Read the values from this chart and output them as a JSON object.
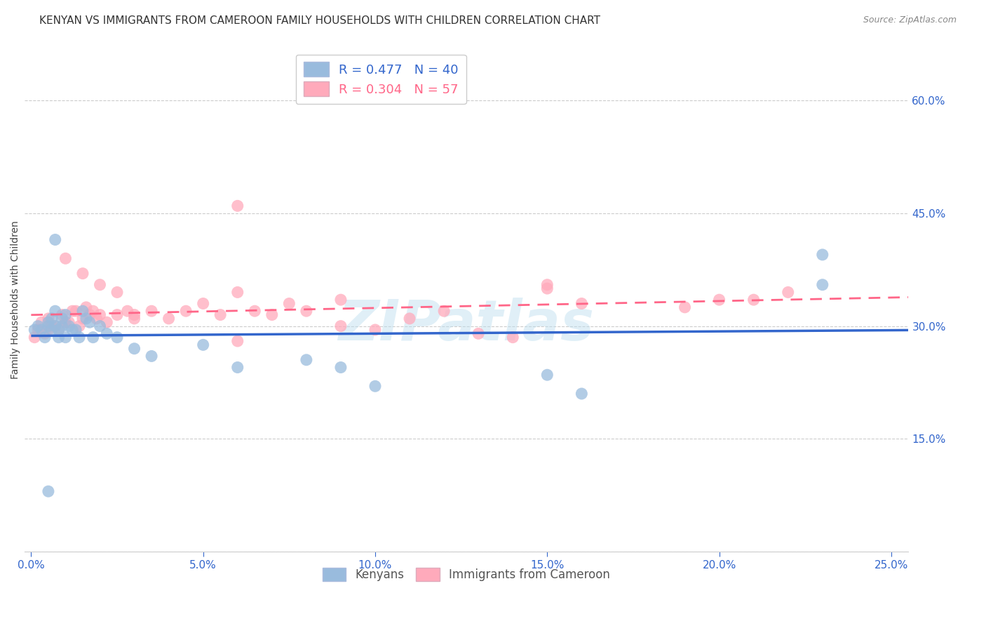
{
  "title": "KENYAN VS IMMIGRANTS FROM CAMEROON FAMILY HOUSEHOLDS WITH CHILDREN CORRELATION CHART",
  "source": "Source: ZipAtlas.com",
  "ylabel": "Family Households with Children",
  "ytick_labels": [
    "",
    "15.0%",
    "30.0%",
    "45.0%",
    "60.0%"
  ],
  "yticks": [
    0.0,
    0.15,
    0.3,
    0.45,
    0.6
  ],
  "xticks": [
    0.0,
    0.05,
    0.1,
    0.15,
    0.2,
    0.25
  ],
  "xlim": [
    -0.002,
    0.255
  ],
  "ylim": [
    0.0,
    0.67
  ],
  "blue_color": "#99BBDD",
  "pink_color": "#FFAABB",
  "line_blue": "#3366CC",
  "line_pink": "#FF6688",
  "watermark_zip": "ZIP",
  "watermark_atlas": "atlas",
  "legend_r_blue": "R = 0.477",
  "legend_n_blue": "N = 40",
  "legend_r_pink": "R = 0.304",
  "legend_n_pink": "N = 57",
  "legend_label_blue": "Kenyans",
  "legend_label_pink": "Immigrants from Cameroon",
  "blue_x": [
    0.001,
    0.002,
    0.003,
    0.004,
    0.005,
    0.005,
    0.006,
    0.006,
    0.007,
    0.007,
    0.008,
    0.008,
    0.009,
    0.009,
    0.01,
    0.01,
    0.011,
    0.012,
    0.013,
    0.014,
    0.015,
    0.016,
    0.017,
    0.018,
    0.02,
    0.022,
    0.025,
    0.03,
    0.035,
    0.05,
    0.06,
    0.08,
    0.09,
    0.1,
    0.15,
    0.16,
    0.23,
    0.23,
    0.007,
    0.005
  ],
  "blue_y": [
    0.295,
    0.3,
    0.295,
    0.285,
    0.305,
    0.3,
    0.31,
    0.295,
    0.3,
    0.32,
    0.295,
    0.285,
    0.3,
    0.31,
    0.285,
    0.315,
    0.3,
    0.295,
    0.295,
    0.285,
    0.32,
    0.31,
    0.305,
    0.285,
    0.3,
    0.29,
    0.285,
    0.27,
    0.26,
    0.275,
    0.245,
    0.255,
    0.245,
    0.22,
    0.235,
    0.21,
    0.395,
    0.355,
    0.415,
    0.08
  ],
  "pink_x": [
    0.001,
    0.002,
    0.003,
    0.004,
    0.005,
    0.005,
    0.006,
    0.007,
    0.008,
    0.009,
    0.01,
    0.01,
    0.011,
    0.012,
    0.013,
    0.014,
    0.015,
    0.016,
    0.017,
    0.018,
    0.019,
    0.02,
    0.022,
    0.025,
    0.028,
    0.03,
    0.035,
    0.04,
    0.045,
    0.05,
    0.055,
    0.06,
    0.065,
    0.07,
    0.075,
    0.08,
    0.09,
    0.1,
    0.11,
    0.12,
    0.13,
    0.14,
    0.15,
    0.16,
    0.19,
    0.2,
    0.21,
    0.22,
    0.01,
    0.015,
    0.02,
    0.025,
    0.03,
    0.06,
    0.09,
    0.15,
    0.06
  ],
  "pink_y": [
    0.285,
    0.295,
    0.305,
    0.29,
    0.295,
    0.31,
    0.3,
    0.3,
    0.295,
    0.315,
    0.305,
    0.305,
    0.305,
    0.32,
    0.32,
    0.3,
    0.31,
    0.325,
    0.315,
    0.32,
    0.31,
    0.315,
    0.305,
    0.315,
    0.32,
    0.315,
    0.32,
    0.31,
    0.32,
    0.33,
    0.315,
    0.345,
    0.32,
    0.315,
    0.33,
    0.32,
    0.3,
    0.295,
    0.31,
    0.32,
    0.29,
    0.285,
    0.355,
    0.33,
    0.325,
    0.335,
    0.335,
    0.345,
    0.39,
    0.37,
    0.355,
    0.345,
    0.31,
    0.28,
    0.335,
    0.35,
    0.46
  ],
  "title_fontsize": 11,
  "axis_label_fontsize": 10,
  "tick_fontsize": 11,
  "legend_fontsize": 13,
  "background_color": "#ffffff",
  "grid_color": "#cccccc"
}
